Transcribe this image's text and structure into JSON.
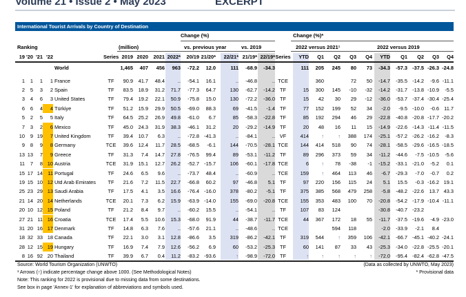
{
  "header": {
    "publication": "Volume 21 • Issue 2 • May 2023",
    "excerpt": "EXCERPT"
  },
  "table": {
    "title": "International Tourist Arrivals by Country of Destination",
    "group_headers": {
      "ranking": "Ranking",
      "million": "(million)",
      "change": "Change (%)",
      "vs_prev": "vs. previous year",
      "vs_2019": "vs. 2019",
      "change2": "Change (%)*",
      "v2021": "2022 versus 2021¹",
      "v2019": "2022 versus 2019"
    },
    "columns": [
      "19",
      "'20",
      "'21",
      "'22",
      "",
      "Series",
      "2019",
      "2020",
      "2021",
      "2022*",
      "20/19",
      "21/20*",
      "22/21*",
      "21/19*",
      "22/19*",
      "Series",
      "YTD",
      "Q1",
      "Q2",
      "Q3",
      "Q4",
      "YTD",
      "Q1",
      "Q2",
      "Q3",
      "Q4"
    ],
    "world": [
      "",
      "",
      "",
      "",
      "World",
      "",
      "1,465",
      "407",
      "456",
      "963",
      "-72.2",
      "12.0",
      "111",
      "-68.9",
      "-34.3",
      "",
      "111",
      "205",
      "245",
      "80",
      "73",
      "-34.3",
      "-57.3",
      "-37.5",
      "-26.3",
      "-24.8"
    ],
    "rows": [
      [
        "1",
        "1",
        "1",
        "1",
        "France",
        "TF",
        "90.9",
        "41.7",
        "48.4",
        "..",
        "-54.1",
        "16.1",
        "..",
        "-46.8",
        "..",
        "TCE",
        "",
        "360",
        "",
        "72",
        "50",
        "-14.7",
        "-35.5",
        "-14.2",
        "-9.6",
        "-11.1"
      ],
      [
        "2",
        "5",
        "3",
        "2",
        "Spain",
        "TF",
        "83.5",
        "18.9",
        "31.2",
        "71.7",
        "-77.3",
        "64.7",
        "130",
        "-62.7",
        "-14.2",
        "TF",
        "15",
        "300",
        "145",
        "-10",
        "-32",
        "-14.2",
        "-31.7",
        "-13.8",
        "-10.9",
        "-5.5"
      ],
      [
        "3",
        "4",
        "6",
        "3",
        "United States",
        "TF",
        "79.4",
        "19.2",
        "22.1",
        "50.9",
        "-75.8",
        "15.0",
        "130",
        "-72.2",
        "-36.0",
        "TF",
        "15",
        "42",
        "30",
        "29",
        "-12",
        "-36.0",
        "-53.7",
        "-37.4",
        "-30.4",
        "-25.4"
      ],
      [
        "6",
        "6",
        "4",
        "4",
        "Türkiye",
        "TF",
        "51.2",
        "15.9",
        "29.9",
        "50.5",
        "-69.0",
        "88.3",
        "69",
        "-41.5",
        "-1.4",
        "TF",
        "77",
        "152",
        "199",
        "52",
        "34",
        "-2.0",
        "-9.5",
        "-10.0",
        "-0.6",
        "11.7"
      ],
      [
        "5",
        "2",
        "5",
        "5",
        "Italy",
        "TF",
        "64.5",
        "25.2",
        "26.9",
        "49.8",
        "-61.0",
        "6.7",
        "85",
        "-58.3",
        "-22.8",
        "TF",
        "85",
        "192",
        "294",
        "46",
        "29",
        "-22.8",
        "-40.8",
        "-20.8",
        "-17.7",
        "-20.2"
      ],
      [
        "7",
        "3",
        "2",
        "6",
        "Mexico",
        "TF",
        "45.0",
        "24.3",
        "31.9",
        "38.3",
        "-46.1",
        "31.2",
        "20",
        "-29.2",
        "-14.9",
        "TF",
        "20",
        "48",
        "16",
        "11",
        "15",
        "-14.9",
        "-22.6",
        "-14.3",
        "-11.4",
        "-11.5"
      ],
      [
        "10",
        "9",
        "19",
        "7",
        "United Kingdom",
        "TF",
        "39.4",
        "10.7",
        "6.3",
        "..",
        "-72.8",
        "-41.3",
        "..",
        "-84.1",
        "..",
        "VF",
        "414",
        "↑",
        "↑",
        "388",
        "174",
        "-25.1",
        "-57.2",
        "-26.2",
        "-16.2",
        "-8.3"
      ],
      [
        "9",
        "8",
        "9",
        "8",
        "Germany",
        "TCE",
        "39.6",
        "12.4",
        "11.7",
        "28.5",
        "-68.5",
        "-6.1",
        "144",
        "-70.5",
        "-28.1",
        "TCE",
        "144",
        "414",
        "518",
        "90",
        "74",
        "-28.1",
        "-58.5",
        "-29.6",
        "-16.5",
        "-18.5"
      ],
      [
        "13",
        "13",
        "7",
        "9",
        "Greece",
        "TF",
        "31.3",
        "7.4",
        "14.7",
        "27.8",
        "-76.5",
        "99.4",
        "89",
        "-53.1",
        "-11.2",
        "TF",
        "89",
        "296",
        "373",
        "59",
        "34",
        "-11.2",
        "-44.6",
        "-7.5",
        "-10.5",
        "-5.6"
      ],
      [
        "11",
        "7",
        "8",
        "10",
        "Austria",
        "TCE",
        "31.9",
        "15.1",
        "12.7",
        "26.2",
        "-52.7",
        "-15.7",
        "106",
        "-60.1",
        "-17.8",
        "TCE",
        "6",
        "↑",
        "78",
        "-38",
        "-1",
        "-15.2",
        "-33.1",
        "-21.0",
        "-5.2",
        "0.1"
      ],
      [
        "15",
        "17",
        "14",
        "11",
        "Portugal",
        "TF",
        "24.6",
        "6.5",
        "9.6",
        "..",
        "-73.7",
        "48.4",
        "..",
        "-60.9",
        "..",
        "TCE",
        "159",
        "↑",
        "464",
        "113",
        "46",
        "-6.7",
        "-29.3",
        "-7.0",
        "-0.7",
        "0.2"
      ],
      [
        "19",
        "15",
        "10",
        "12",
        "Utd Arab Emirates",
        "TF",
        "21.6",
        "7.2",
        "11.5",
        "22.7",
        "-66.8",
        "60.2",
        "97",
        "-46.8",
        "5.1",
        "TF",
        "97",
        "220",
        "156",
        "115",
        "24",
        "5.1",
        "15.5",
        "-0.3",
        "-16.2",
        "19.1"
      ],
      [
        "25",
        "23",
        "29",
        "13",
        "Saudi Arabia",
        "TF",
        "17.5",
        "4.1",
        "3.5",
        "16.6",
        "-76.4",
        "-16.0",
        "378",
        "-80.2",
        "-5.1",
        "TF",
        "375",
        "385",
        "568",
        "479",
        "258",
        "-5.8",
        "-48.2",
        "-22.6",
        "13.7",
        "43.3"
      ],
      [
        "21",
        "14",
        "20",
        "14",
        "Netherlands",
        "TCE",
        "20.1",
        "7.3",
        "6.2",
        "15.9",
        "-63.9",
        "-14.0",
        "155",
        "-69.0",
        "-20.8",
        "TCE",
        "155",
        "353",
        "483",
        "100",
        "70",
        "-20.8",
        "-54.2",
        "-17.9",
        "-10.4",
        "-11.1"
      ],
      [
        "20",
        "10",
        "12",
        "15",
        "Poland",
        "TF",
        "21.2",
        "8.4",
        "9.7",
        "..",
        "-60.2",
        "15.5",
        "..",
        "-54.1",
        "..",
        "TF",
        "107",
        "83",
        "124",
        "",
        "",
        "-30.8",
        "-40.7",
        "-23.2",
        "",
        ""
      ],
      [
        "27",
        "21",
        "11",
        "16",
        "Croatia",
        "TCE",
        "17.4",
        "5.5",
        "10.6",
        "15.3",
        "-68.0",
        "91.9",
        "44",
        "-38.7",
        "-11.7",
        "TCE",
        "44",
        "367",
        "172",
        "18",
        "55",
        "-11.7",
        "-37.5",
        "-19.6",
        "-4.9",
        "-23.0"
      ],
      [
        "31",
        "20",
        "16",
        "17",
        "Denmark",
        "TF",
        "14.8",
        "6.3",
        "7.6",
        "..",
        "-57.6",
        "21.1",
        "..",
        "-48.6",
        "..",
        "TCE",
        "",
        "",
        "594",
        "118",
        "",
        "-2.0",
        "-33.9",
        "-2.1",
        "8.4",
        ""
      ],
      [
        "18",
        "32",
        "33",
        "18",
        "Canada",
        "TF",
        "22.1",
        "3.0",
        "3.1",
        "12.8",
        "-86.6",
        "3.5",
        "319",
        "-86.2",
        "-42.1",
        "TF",
        "319",
        "544",
        "↑",
        "359",
        "106",
        "-42.1",
        "-66.7",
        "-45.1",
        "-40.2",
        "-24.1"
      ],
      [
        "28",
        "12",
        "15",
        "19",
        "Hungary",
        "TF",
        "16.9",
        "7.4",
        "7.9",
        "12.6",
        "-56.2",
        "6.9",
        "60",
        "-53.2",
        "-25.3",
        "TF",
        "60",
        "141",
        "87",
        "33",
        "43",
        "-25.3",
        "-34.0",
        "-22.8",
        "-25.5",
        "-20.1"
      ],
      [
        "8",
        "16",
        "92",
        "20",
        "Thailand",
        "TF",
        "39.9",
        "6.7",
        "0.4",
        "11.2",
        "-83.2",
        "-93.6",
        "↑",
        "-98.9",
        "-72.0",
        "TF",
        "↑",
        "↑",
        "↑",
        "↑",
        "↑",
        "-72.0",
        "-95.4",
        "-82.4",
        "-62.8",
        "-47.5"
      ]
    ],
    "rank_highlight": [
      false,
      false,
      false,
      true,
      false,
      true,
      true,
      true,
      true,
      true,
      true,
      true,
      true,
      true,
      true,
      true,
      true,
      false,
      true,
      false
    ],
    "highlight_color": "#ffc000",
    "header_color": "#00569b"
  },
  "footer": {
    "source": "Source: World Tourism Organization (UNWTO)",
    "note1": "¹ Arrows (↑) indicate percentage change above 1000. (See Methodological Notes)",
    "note2": "Note: This ranking for 2022 is provisional due to missing data from some destinations.",
    "note3": "See box in page 'Annex-1' for explanation of abbreviations and symbols used.",
    "collected": "(Data as collected by UNWTO, May 2023)",
    "provisional": "* Provisional data"
  }
}
